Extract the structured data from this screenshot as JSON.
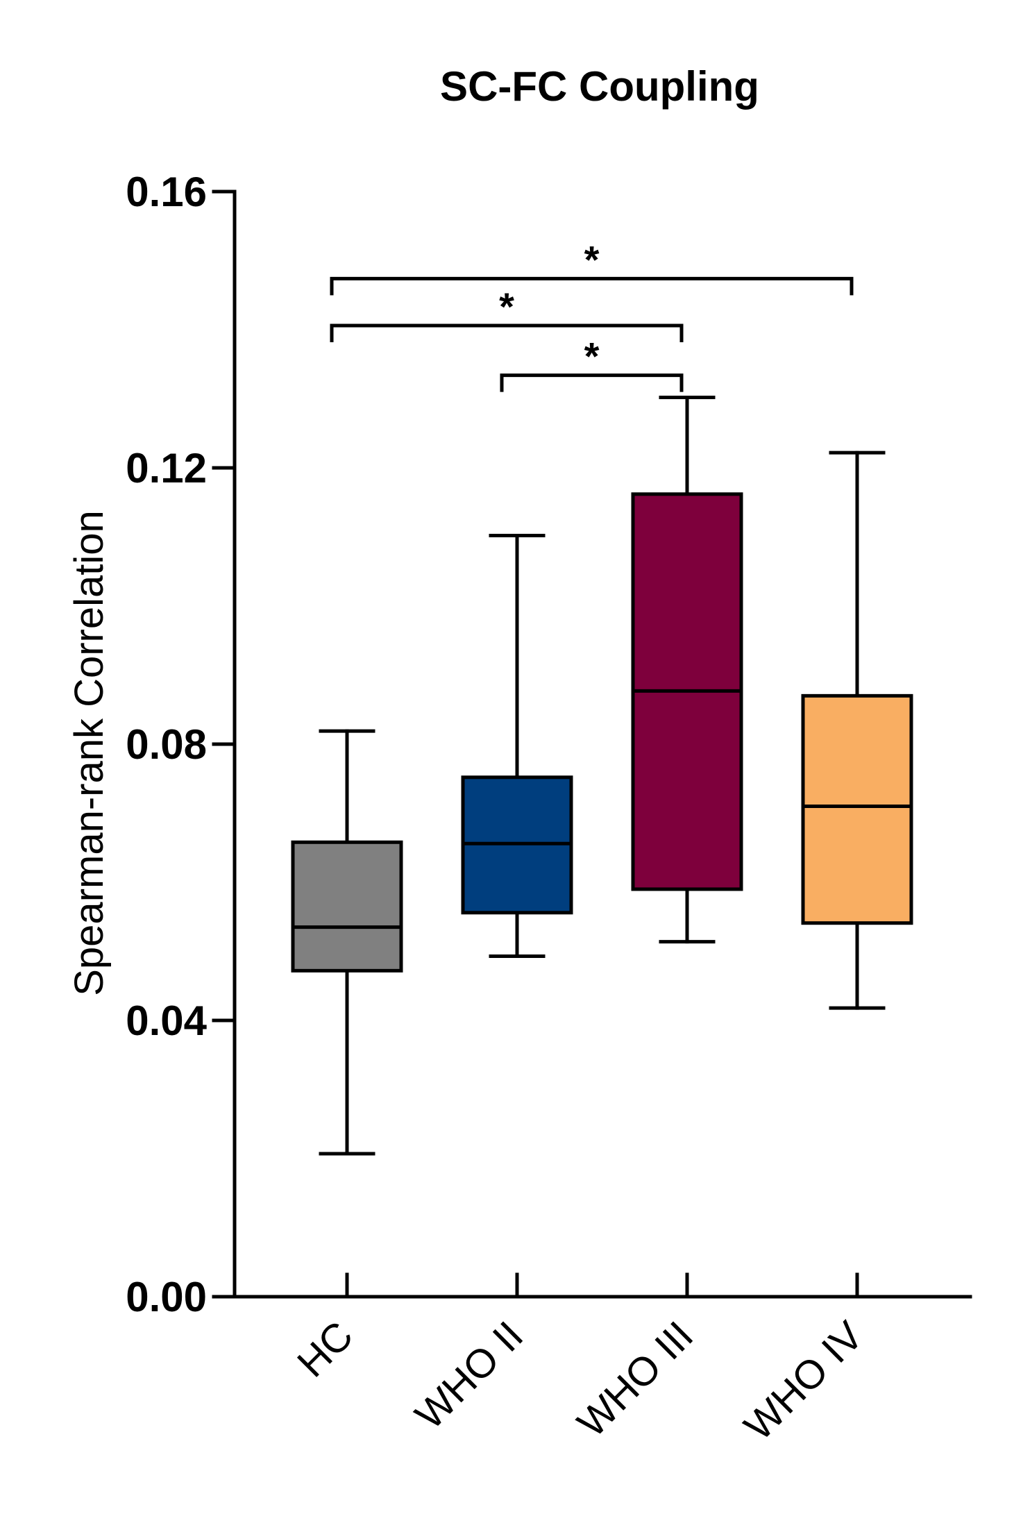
{
  "chart_data": {
    "type": "box",
    "title": "SC-FC Coupling",
    "xlabel": "",
    "ylabel": "Spearman-rank Correlation",
    "ylim": [
      0,
      0.16
    ],
    "yticks": [
      0.0,
      0.04,
      0.08,
      0.12,
      0.16
    ],
    "ytick_labels": [
      "0.00",
      "0.04",
      "0.08",
      "0.12",
      "0.16"
    ],
    "categories": [
      "HC",
      "WHO II",
      "WHO III",
      "WHO IV"
    ],
    "boxes": [
      {
        "name": "HC",
        "whisker_low": 0.0207,
        "q1": 0.0472,
        "median": 0.0535,
        "q3": 0.0658,
        "whisker_high": 0.0819,
        "color": "#808080"
      },
      {
        "name": "WHO II",
        "whisker_low": 0.0493,
        "q1": 0.0556,
        "median": 0.0656,
        "q3": 0.0752,
        "whisker_high": 0.1102,
        "color": "#003E7E"
      },
      {
        "name": "WHO III",
        "whisker_low": 0.0514,
        "q1": 0.059,
        "median": 0.0877,
        "q3": 0.1162,
        "whisker_high": 0.1302,
        "color": "#7E003C"
      },
      {
        "name": "WHO IV",
        "whisker_low": 0.0418,
        "q1": 0.0541,
        "median": 0.071,
        "q3": 0.087,
        "whisker_high": 0.1222,
        "color": "#F9AE62"
      }
    ],
    "significance": [
      {
        "from": "HC",
        "to": "WHO IV",
        "label": "*",
        "y": 0.1474
      },
      {
        "from": "HC",
        "to": "WHO III",
        "label": "*",
        "y": 0.1406
      },
      {
        "from": "WHO II",
        "to": "WHO III",
        "label": "*",
        "y": 0.1334
      }
    ]
  }
}
